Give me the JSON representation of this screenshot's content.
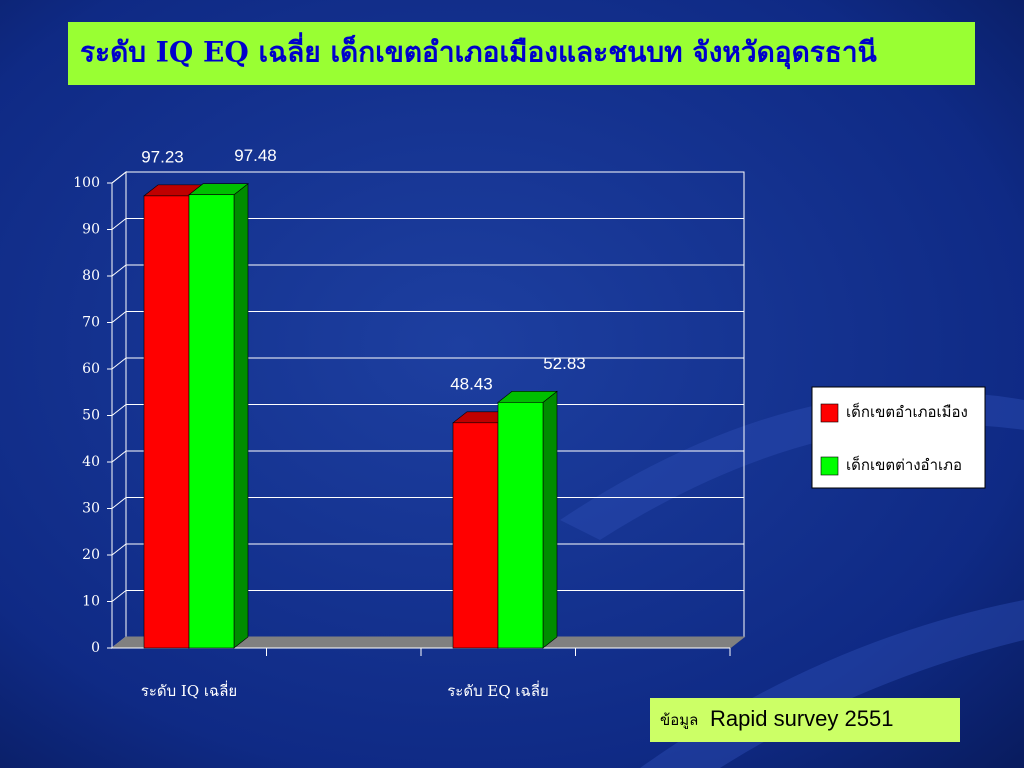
{
  "chart_data": {
    "type": "bar3d",
    "title": "ระดับ IQ EQ  เฉลี่ย เด็กเขตอำเภอเมืองและชนบท จังหวัดอุดรธานี",
    "categories": [
      "ระดับ IQ เฉลี่ย",
      "ระดับ EQ เฉลี่ย"
    ],
    "series": [
      {
        "name": "เด็กเขตอำเภอเมือง",
        "color": "#ff0000",
        "values": [
          97.23,
          48.43
        ]
      },
      {
        "name": "เด็กเขตต่างอำเภอ",
        "color": "#00ff00",
        "values": [
          97.48,
          52.83
        ]
      }
    ],
    "ylim": [
      0,
      100
    ],
    "yticks": [
      0,
      10,
      20,
      30,
      40,
      50,
      60,
      70,
      80,
      90,
      100
    ],
    "grid": true,
    "legend": "right",
    "source_label": "ข้อมูล",
    "source": "Rapid survey 2551"
  }
}
